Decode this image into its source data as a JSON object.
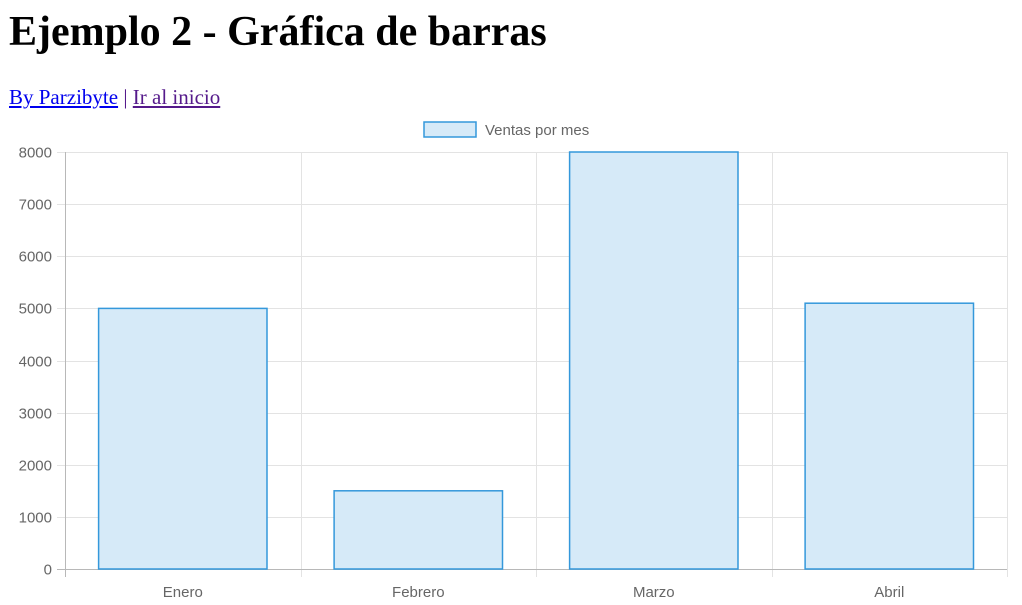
{
  "page": {
    "title": "Ejemplo 2 - Gráfica de barras",
    "links": [
      {
        "label": "By Parzibyte"
      },
      {
        "label": "Ir al inicio"
      }
    ],
    "separator": "|"
  },
  "chart_data": {
    "type": "bar",
    "categories": [
      "Enero",
      "Febrero",
      "Marzo",
      "Abril"
    ],
    "series": [
      {
        "name": "Ventas por mes",
        "values": [
          5000,
          1500,
          8000,
          5100
        ],
        "fill": "#d6eaf8",
        "stroke": "#3498db"
      }
    ],
    "ylim": [
      0,
      8000
    ],
    "yticks": [
      0,
      1000,
      2000,
      3000,
      4000,
      5000,
      6000,
      7000,
      8000
    ],
    "grid": true,
    "legend": "top-center",
    "title": "",
    "xlabel": "",
    "ylabel": ""
  }
}
